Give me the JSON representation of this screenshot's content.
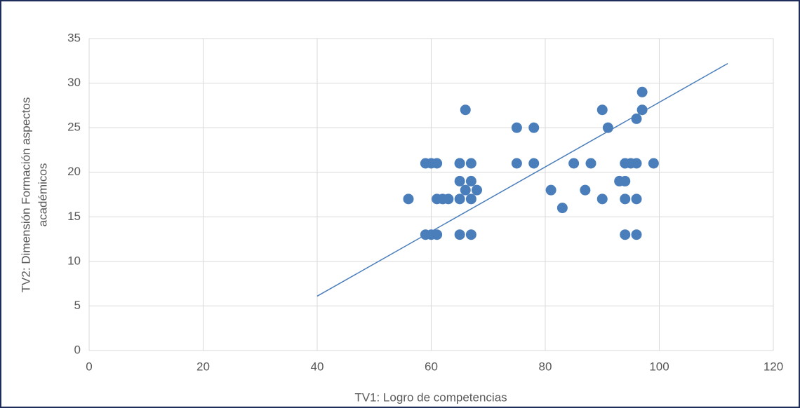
{
  "chart_data": {
    "type": "scatter",
    "x_label": "TV1: Logro de competencias",
    "y_label": [
      "TV2: Dimensión Formación aspectos",
      "académicos"
    ],
    "color": "#4a7ebb",
    "x": [
      56,
      59,
      60,
      61,
      59,
      60,
      61,
      61,
      62,
      63,
      65,
      65,
      65,
      65,
      65,
      66,
      66,
      67,
      67,
      67,
      67,
      68,
      75,
      75,
      78,
      78,
      81,
      83,
      85,
      87,
      88,
      90,
      90,
      91,
      93,
      94,
      94,
      94,
      94,
      95,
      96,
      96,
      96,
      96,
      97,
      97,
      99
    ],
    "values": [
      17,
      21,
      21,
      21,
      13,
      13,
      13,
      17,
      17,
      17,
      21,
      21,
      19,
      17,
      13,
      18,
      27,
      21,
      19,
      17,
      13,
      18,
      25,
      21,
      25,
      21,
      18,
      16,
      21,
      18,
      21,
      27,
      17,
      25,
      19,
      19,
      21,
      17,
      13,
      21,
      21,
      26,
      17,
      13,
      29,
      27,
      21
    ],
    "trendline": {
      "x": [
        40,
        112
      ],
      "values": [
        6.1,
        32.2
      ]
    },
    "xlim": [
      0,
      120
    ],
    "xticks": [
      0,
      20,
      40,
      60,
      80,
      100,
      120
    ],
    "ylim": [
      0,
      35
    ],
    "yticks": [
      0,
      5,
      10,
      15,
      20,
      25,
      30,
      35
    ],
    "grid": true
  }
}
